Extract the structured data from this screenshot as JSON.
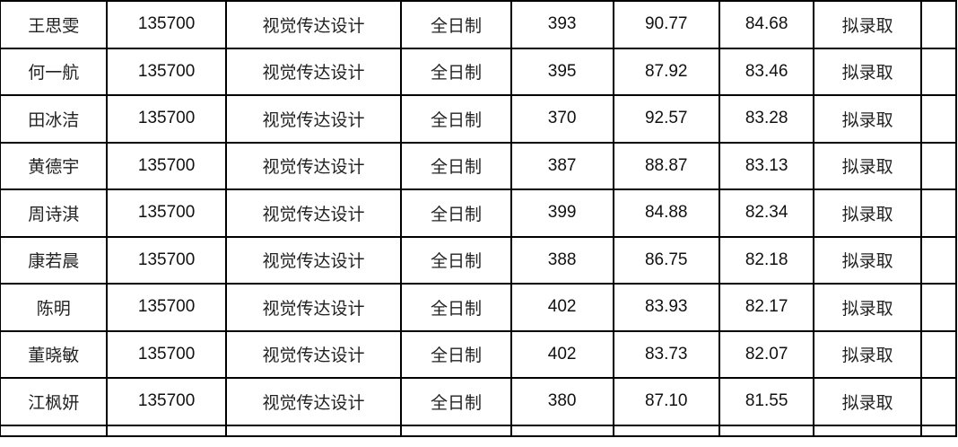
{
  "rows": [
    {
      "name": "王思雯",
      "code": "135700",
      "major": "视觉传达设计",
      "mode": "全日制",
      "exam": "393",
      "retest": "90.77",
      "total": "84.68",
      "status": "拟录取"
    },
    {
      "name": "何一航",
      "code": "135700",
      "major": "视觉传达设计",
      "mode": "全日制",
      "exam": "395",
      "retest": "87.92",
      "total": "83.46",
      "status": "拟录取"
    },
    {
      "name": "田冰洁",
      "code": "135700",
      "major": "视觉传达设计",
      "mode": "全日制",
      "exam": "370",
      "retest": "92.57",
      "total": "83.28",
      "status": "拟录取"
    },
    {
      "name": "黄德宇",
      "code": "135700",
      "major": "视觉传达设计",
      "mode": "全日制",
      "exam": "387",
      "retest": "88.87",
      "total": "83.13",
      "status": "拟录取"
    },
    {
      "name": "周诗淇",
      "code": "135700",
      "major": "视觉传达设计",
      "mode": "全日制",
      "exam": "399",
      "retest": "84.88",
      "total": "82.34",
      "status": "拟录取"
    },
    {
      "name": "康若晨",
      "code": "135700",
      "major": "视觉传达设计",
      "mode": "全日制",
      "exam": "388",
      "retest": "86.75",
      "total": "82.18",
      "status": "拟录取"
    },
    {
      "name": "陈明",
      "code": "135700",
      "major": "视觉传达设计",
      "mode": "全日制",
      "exam": "402",
      "retest": "83.93",
      "total": "82.17",
      "status": "拟录取"
    },
    {
      "name": "董晓敏",
      "code": "135700",
      "major": "视觉传达设计",
      "mode": "全日制",
      "exam": "402",
      "retest": "83.73",
      "total": "82.07",
      "status": "拟录取"
    },
    {
      "name": "江枫妍",
      "code": "135700",
      "major": "视觉传达设计",
      "mode": "全日制",
      "exam": "380",
      "retest": "87.10",
      "total": "81.55",
      "status": "拟录取"
    }
  ]
}
